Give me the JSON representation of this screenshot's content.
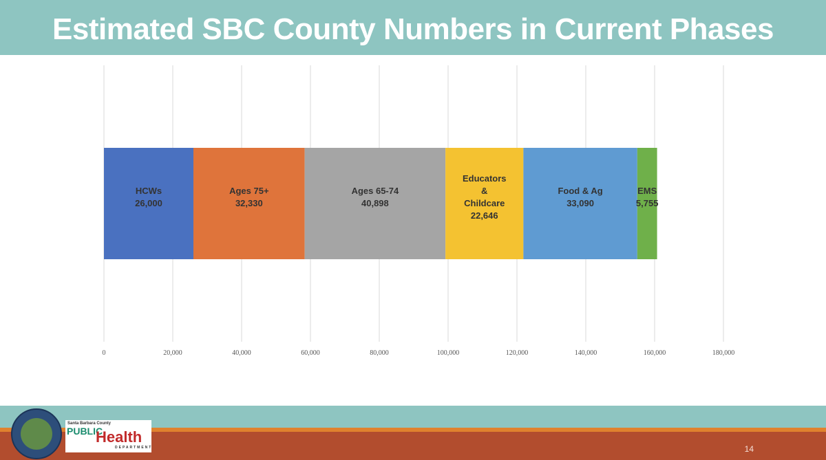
{
  "header": {
    "title": "Estimated SBC County Numbers in Current Phases"
  },
  "chart_data": {
    "type": "bar",
    "orientation": "horizontal",
    "stacked": true,
    "title": "Estimated SBC County Numbers in Current Phases",
    "series": [
      {
        "name": "HCWs",
        "label_lines": [
          "HCWs"
        ],
        "value": 26000,
        "value_label": "26,000",
        "color": "#4a71c0"
      },
      {
        "name": "Ages 75+",
        "label_lines": [
          "Ages 75+"
        ],
        "value": 32330,
        "value_label": "32,330",
        "color": "#df743b"
      },
      {
        "name": "Ages 65-74",
        "label_lines": [
          "Ages 65-74"
        ],
        "value": 40898,
        "value_label": "40,898",
        "color": "#a5a5a5"
      },
      {
        "name": "Educators & Childcare",
        "label_lines": [
          "Educators",
          "&",
          "Childcare"
        ],
        "value": 22646,
        "value_label": "22,646",
        "color": "#f4c231"
      },
      {
        "name": "Food & Ag",
        "label_lines": [
          "Food & Ag"
        ],
        "value": 33090,
        "value_label": "33,090",
        "color": "#5f9bd2"
      },
      {
        "name": "EMS",
        "label_lines": [
          "EMS"
        ],
        "value": 5755,
        "value_label": "5,755",
        "color": "#6fb04a"
      }
    ],
    "xlim": [
      0,
      180000
    ],
    "xticks": [
      0,
      20000,
      40000,
      60000,
      80000,
      100000,
      120000,
      140000,
      160000,
      180000
    ],
    "xtick_labels": [
      "0",
      "20,000",
      "40,000",
      "60,000",
      "80,000",
      "100,000",
      "120,000",
      "140,000",
      "160,000",
      "180,000"
    ],
    "grid": true,
    "legend": "none"
  },
  "footer": {
    "page_number": "14",
    "logo_text": {
      "county": "Santa Barbara County",
      "public": "PUBLIC",
      "health": "Health",
      "dept": "DEPARTMENT",
      "seal": "COUNTY OF SANTA BARBARA CALIFORNIA"
    }
  }
}
